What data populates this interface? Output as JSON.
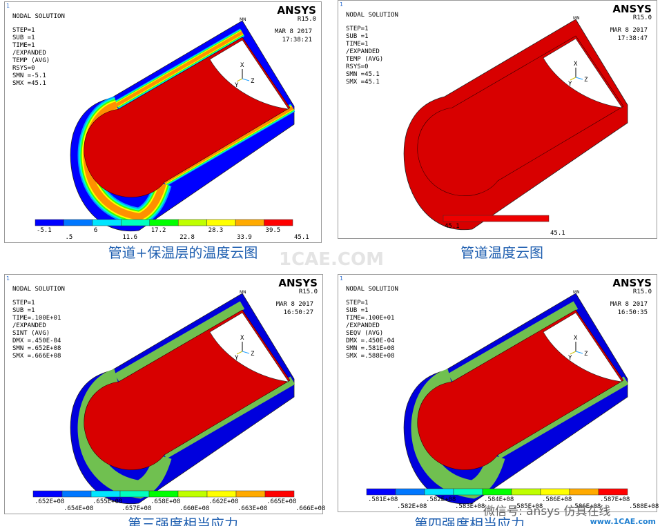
{
  "panels": [
    {
      "page": "1",
      "title": "NODAL SOLUTION",
      "info": [
        "STEP=1",
        "SUB =1",
        "TIME=1",
        "/EXPANDED",
        "TEMP    (AVG)",
        "RSYS=0",
        "SMN =-5.1",
        "SMX =45.1"
      ],
      "logo": "ANSYS",
      "version": "R15.0",
      "date": "MAR  8 2017",
      "time": "17:38:21",
      "mn": "MN",
      "mx": "MX",
      "axes": [
        "X",
        "Y",
        "Z"
      ],
      "shell": [
        "#0000ff",
        "#00a0ff",
        "#00ffd0",
        "#40ff00",
        "#ffff00",
        "#ff9000"
      ],
      "legend_colors": [
        "#0000ff",
        "#0077ff",
        "#00e6ff",
        "#00ffbf",
        "#00ff00",
        "#bfff00",
        "#ffff00",
        "#ffaa00",
        "#ff0000"
      ],
      "legend_top": [
        "-5.1",
        "6",
        "17.2",
        "28.3",
        "39.5"
      ],
      "legend_bottom": [
        ".5",
        "11.6",
        "22.8",
        "33.9",
        "45.1"
      ],
      "caption": "管道+保温层的温度云图"
    },
    {
      "page": "1",
      "title": "NODAL SOLUTION",
      "info": [
        "STEP=1",
        "SUB =1",
        "TIME=1",
        "/EXPANDED",
        "TEMP    (AVG)",
        "RSYS=0",
        "SMN =45.1",
        "SMX =45.1"
      ],
      "logo": "ANSYS",
      "version": "R15.0",
      "date": "MAR  8 2017",
      "time": "17:38:47",
      "mn": "MN",
      "mx": "MX",
      "axes": [
        "X",
        "Y",
        "Z"
      ],
      "shell": [
        "#d80000"
      ],
      "legend_colors": [
        "#ee0000"
      ],
      "legend_top": [
        "45.1"
      ],
      "legend_bottom": [
        "45.1"
      ],
      "caption": "管道温度云图"
    },
    {
      "page": "1",
      "title": "NODAL SOLUTION",
      "info": [
        "STEP=1",
        "SUB =1",
        "TIME=.100E+01",
        "/EXPANDED",
        "SINT    (AVG)",
        "DMX =.450E-04",
        "SMN =.652E+08",
        "SMX =.666E+08"
      ],
      "logo": "ANSYS",
      "version": "R15.0",
      "date": "MAR  8 2017",
      "time": "16:50:27",
      "mn": "MN",
      "mx": "MX",
      "axes": [
        "X",
        "Y",
        "Z"
      ],
      "shell": [
        "#0000dd",
        "#70c050"
      ],
      "legend_colors": [
        "#0000ff",
        "#0077ff",
        "#00e6ff",
        "#00ffbf",
        "#00ff00",
        "#bfff00",
        "#ffff00",
        "#ffaa00",
        "#ff0000"
      ],
      "legend_top": [
        ".652E+08",
        ".655E+08",
        ".658E+08",
        ".662E+08",
        ".665E+08"
      ],
      "legend_bottom": [
        ".654E+08",
        ".657E+08",
        ".660E+08",
        ".663E+08",
        ".666E+08"
      ],
      "caption": "第三强度相当应力"
    },
    {
      "page": "1",
      "title": "NODAL SOLUTION",
      "info": [
        "STEP=1",
        "SUB =1",
        "TIME=.100E+01",
        "/EXPANDED",
        "SEQV    (AVG)",
        "DMX =.450E-04",
        "SMN =.581E+08",
        "SMX =.588E+08"
      ],
      "logo": "ANSYS",
      "version": "R15.0",
      "date": "MAR  8 2017",
      "time": "16:50:35",
      "mn": "MN",
      "mx": "MX",
      "axes": [
        "X",
        "Y",
        "Z"
      ],
      "shell": [
        "#0000dd",
        "#70c050"
      ],
      "legend_colors": [
        "#0000ff",
        "#0077ff",
        "#00e6ff",
        "#00ffbf",
        "#00ff00",
        "#bfff00",
        "#ffff00",
        "#ffaa00",
        "#ff0000"
      ],
      "legend_top": [
        ".581E+08",
        ".582E+08",
        ".584E+08",
        ".586E+08",
        ".587E+08"
      ],
      "legend_bottom": [
        ".582E+08",
        ".583E+08",
        ".585E+08",
        ".586E+08",
        ".588E+08"
      ],
      "caption": "第四强度相当应力"
    }
  ],
  "watermark": {
    "center": "1CAE.COM",
    "wechat": "微信号: ansys 仿真在线",
    "site": "www.1CAE.com"
  }
}
